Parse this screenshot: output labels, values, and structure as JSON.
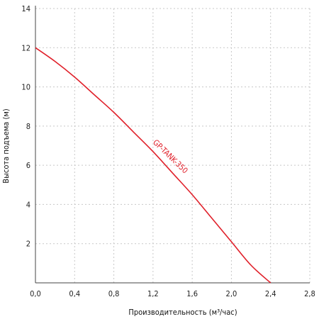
{
  "chart_data": {
    "type": "line",
    "xlabel": "Производительность (м³/час)",
    "ylabel": "Высота подъема (м)",
    "xlim": [
      0,
      2.8
    ],
    "ylim": [
      0,
      14
    ],
    "x_ticks": [
      0,
      0.4,
      0.8,
      1.2,
      1.6,
      2.0,
      2.4,
      2.8
    ],
    "x_tick_labels": [
      "0,0",
      "0,4",
      "0,8",
      "1,2",
      "1,6",
      "2,0",
      "2,4",
      "2,8"
    ],
    "y_ticks": [
      2,
      4,
      6,
      8,
      10,
      12,
      14
    ],
    "y_tick_labels": [
      "2",
      "4",
      "6",
      "8",
      "10",
      "12",
      "14"
    ],
    "grid": true,
    "series": [
      {
        "name": "GP-TANK-350",
        "color": "#e0202a",
        "x": [
          0,
          0.2,
          0.4,
          0.6,
          0.8,
          1.0,
          1.2,
          1.4,
          1.6,
          1.8,
          2.0,
          2.2,
          2.4
        ],
        "y": [
          12.0,
          11.3,
          10.5,
          9.6,
          8.7,
          7.7,
          6.7,
          5.6,
          4.5,
          3.3,
          2.1,
          0.9,
          0.0
        ]
      }
    ]
  }
}
